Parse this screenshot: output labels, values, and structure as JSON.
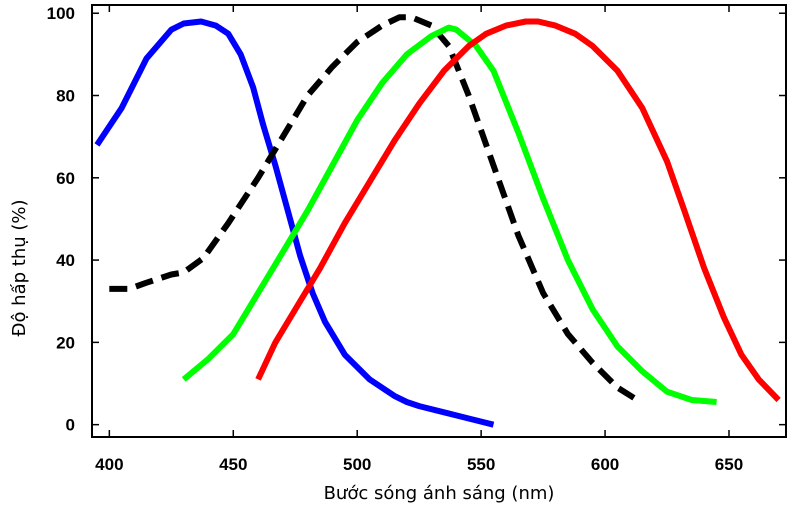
{
  "chart_data": {
    "type": "line",
    "title": "",
    "xlabel": "Bước sóng ánh sáng (nm)",
    "ylabel": "Độ hấp thụ (%)",
    "xlim": [
      393,
      673
    ],
    "ylim": [
      -3,
      102
    ],
    "xticks": [
      400,
      450,
      500,
      550,
      600,
      650
    ],
    "yticks": [
      0,
      20,
      40,
      60,
      80,
      100
    ],
    "grid": false,
    "legend": "none",
    "series": [
      {
        "name": "blue",
        "color": "#0000ff",
        "dash": "solid",
        "x": [
          395,
          405,
          415,
          425,
          430,
          437,
          443,
          448,
          453,
          458,
          462,
          467,
          472,
          477,
          482,
          487,
          495,
          505,
          515,
          520,
          525,
          535,
          545,
          555
        ],
        "y": [
          68,
          77,
          89,
          96,
          97.5,
          98,
          97,
          95,
          90,
          82,
          73,
          63,
          52,
          41,
          32,
          25,
          17,
          11,
          7,
          5.5,
          4.5,
          3,
          1.5,
          0
        ]
      },
      {
        "name": "black",
        "color": "#000000",
        "dash": "dashed",
        "x": [
          400,
          408,
          415,
          425,
          430,
          438,
          448,
          460,
          470,
          480,
          490,
          500,
          510,
          517,
          522,
          530,
          537,
          545,
          555,
          565,
          575,
          585,
          595,
          605,
          613
        ],
        "y": [
          33,
          33,
          34.5,
          36.5,
          37,
          40.5,
          49,
          60,
          70,
          80,
          87,
          93,
          97,
          99,
          99,
          97,
          92,
          80,
          63,
          46,
          32,
          22,
          15,
          9,
          6
        ]
      },
      {
        "name": "green",
        "color": "#00ff00",
        "dash": "solid",
        "x": [
          430,
          440,
          450,
          460,
          470,
          480,
          490,
          500,
          510,
          520,
          530,
          537,
          540,
          548,
          555,
          565,
          575,
          585,
          595,
          605,
          615,
          625,
          635,
          645
        ],
        "y": [
          11,
          16,
          22,
          32,
          42,
          52,
          63,
          74,
          83,
          90,
          94.5,
          96.5,
          96,
          92,
          86,
          71,
          55,
          40,
          28,
          19,
          13,
          8,
          6,
          5.5
        ]
      },
      {
        "name": "red",
        "color": "#ff0000",
        "dash": "solid",
        "x": [
          460,
          467,
          475,
          485,
          495,
          505,
          515,
          525,
          535,
          545,
          552,
          560,
          568,
          573,
          580,
          588,
          595,
          605,
          615,
          625,
          632,
          640,
          648,
          655,
          662,
          670
        ],
        "y": [
          11,
          20,
          28,
          38,
          49,
          59,
          69,
          78,
          86,
          92,
          95,
          97,
          98,
          98,
          97,
          95,
          92,
          86,
          77,
          64,
          52,
          38,
          26,
          17,
          11,
          6
        ]
      }
    ]
  }
}
